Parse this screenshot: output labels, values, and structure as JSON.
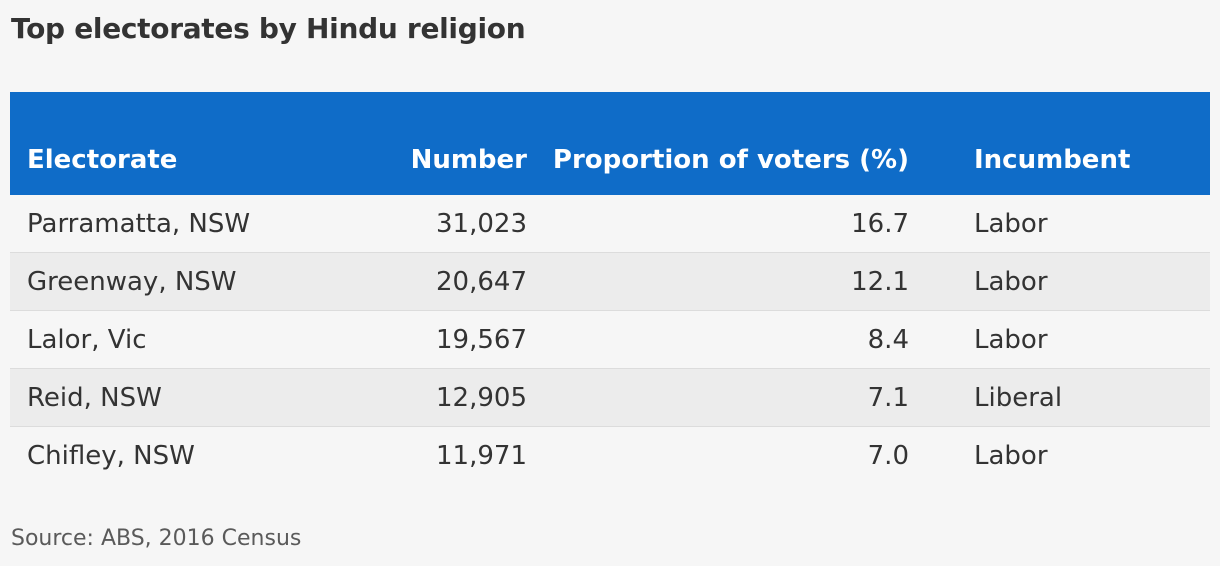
{
  "title": "Top electorates by Hindu religion",
  "table": {
    "headers": [
      "Electorate",
      "Number",
      "Proportion of voters (%)",
      "Incumbent"
    ],
    "rows": [
      [
        "Parramatta, NSW",
        "31,023",
        "16.7",
        "Labor"
      ],
      [
        "Greenway, NSW",
        "20,647",
        "12.1",
        "Labor"
      ],
      [
        "Lalor, Vic",
        "19,567",
        "8.4",
        "Labor"
      ],
      [
        "Reid, NSW",
        "12,905",
        "7.1",
        "Liberal"
      ],
      [
        "Chifley, NSW",
        "11,971",
        "7.0",
        "Labor"
      ]
    ]
  },
  "source": "Source: ABS, 2016 Census",
  "colors": {
    "header_background": "#0f6cc8",
    "header_text": "#ffffff",
    "page_background": "#f6f6f6",
    "row_alt_background": "#ececec",
    "text": "#333333"
  }
}
